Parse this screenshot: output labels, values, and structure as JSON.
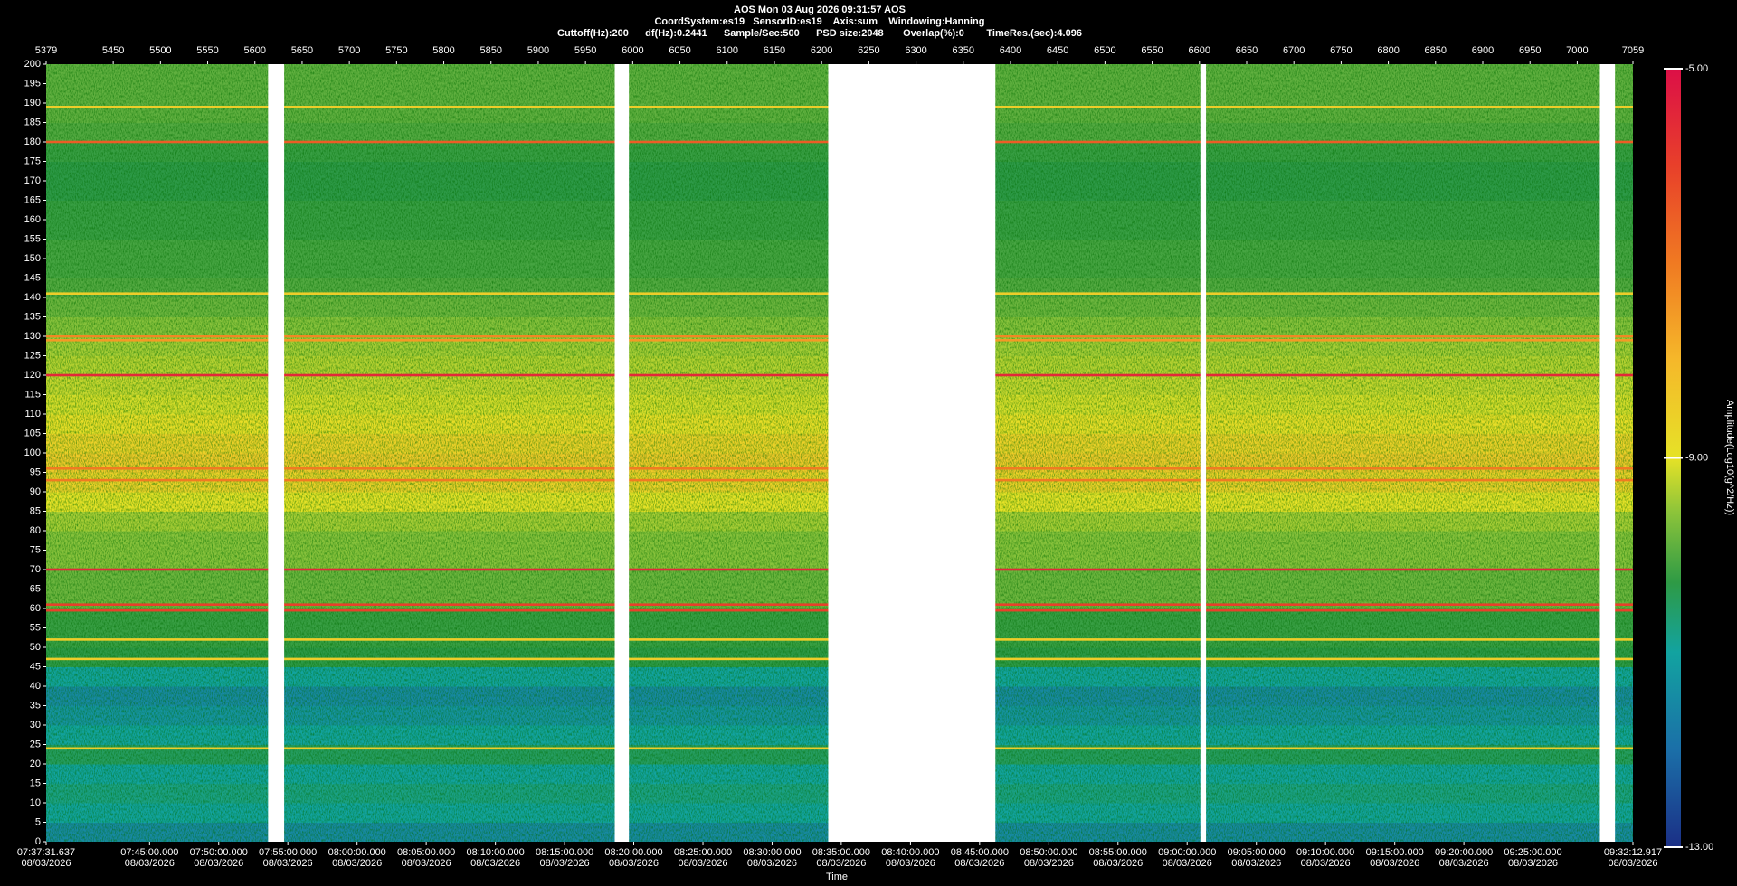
{
  "chart_data": {
    "type": "spectrogram",
    "title": "AOS  Mon 03 Aug 2026 09:31:57  AOS",
    "subtitle": "CoordSystem:es19   SensorID:es19    Axis:sum    Windowing:Hanning",
    "settings_line": "Cuttoff(Hz):200      df(Hz):0.2441      Sample/Sec:500      PSD size:2048       Overlap(%):0        TimeRes.(sec):4.096",
    "x_label": "Time",
    "colorbar_label": "Amplitude(Log10(g^2/Hz))",
    "xlim": [
      5379,
      7059
    ],
    "xticks_top": [
      5379,
      5450,
      5500,
      5550,
      5600,
      5650,
      5700,
      5750,
      5800,
      5850,
      5900,
      5950,
      6000,
      6050,
      6100,
      6150,
      6200,
      6250,
      6300,
      6350,
      6400,
      6450,
      6500,
      6550,
      6600,
      6650,
      6700,
      6750,
      6800,
      6850,
      6900,
      6950,
      7000,
      7059
    ],
    "xticks_bottom": [
      {
        "value": 5379,
        "label": "07:37:31.637\n08/03/2026"
      },
      {
        "value": 5488.5,
        "label": "07:45:00.000\n08/03/2026"
      },
      {
        "value": 5561.7,
        "label": "07:50:00.000\n08/03/2026"
      },
      {
        "value": 5634.9,
        "label": "07:55:00.000\n08/03/2026"
      },
      {
        "value": 5708.2,
        "label": "08:00:00.000\n08/03/2026"
      },
      {
        "value": 5781.4,
        "label": "08:05:00.000\n08/03/2026"
      },
      {
        "value": 5854.7,
        "label": "08:10:00.000\n08/03/2026"
      },
      {
        "value": 5927.9,
        "label": "08:15:00.000\n08/03/2026"
      },
      {
        "value": 6001.1,
        "label": "08:20:00.000\n08/03/2026"
      },
      {
        "value": 6074.4,
        "label": "08:25:00.000\n08/03/2026"
      },
      {
        "value": 6147.6,
        "label": "08:30:00.000\n08/03/2026"
      },
      {
        "value": 6220.8,
        "label": "08:35:00.000\n08/03/2026"
      },
      {
        "value": 6294.1,
        "label": "08:40:00.000\n08/03/2026"
      },
      {
        "value": 6367.3,
        "label": "08:45:00.000\n08/03/2026"
      },
      {
        "value": 6440.6,
        "label": "08:50:00.000\n08/03/2026"
      },
      {
        "value": 6513.8,
        "label": "08:55:00.000\n08/03/2026"
      },
      {
        "value": 6587.0,
        "label": "09:00:00.000\n08/03/2026"
      },
      {
        "value": 6660.3,
        "label": "09:05:00.000\n08/03/2026"
      },
      {
        "value": 6733.5,
        "label": "09:10:00.000\n08/03/2026"
      },
      {
        "value": 6806.8,
        "label": "09:15:00.000\n08/03/2026"
      },
      {
        "value": 6880.0,
        "label": "09:20:00.000\n08/03/2026"
      },
      {
        "value": 6953.2,
        "label": "09:25:00.000\n08/03/2026"
      },
      {
        "value": 7059,
        "label": "09:32:12.917\n08/03/2026"
      }
    ],
    "ylim": [
      0,
      200
    ],
    "yticks": [
      0,
      5,
      10,
      15,
      20,
      25,
      30,
      35,
      40,
      45,
      50,
      55,
      60,
      65,
      70,
      75,
      80,
      85,
      90,
      95,
      100,
      105,
      110,
      115,
      120,
      125,
      130,
      135,
      140,
      145,
      150,
      155,
      160,
      165,
      170,
      175,
      180,
      185,
      190,
      195,
      200
    ],
    "colorbar_lim": [
      -13,
      -5
    ],
    "colorbar_ticks": [
      {
        "value": -5,
        "label": "-5.00"
      },
      {
        "value": -9,
        "label": "-9.00"
      },
      {
        "value": -13,
        "label": "-13.00"
      }
    ],
    "band_edges": [
      0,
      5,
      10,
      15,
      20,
      25,
      30,
      35,
      40,
      45,
      50,
      55,
      60,
      65,
      70,
      75,
      80,
      85,
      90,
      95,
      100,
      105,
      110,
      115,
      120,
      125,
      130,
      135,
      140,
      145,
      150,
      155,
      160,
      165,
      170,
      175,
      180,
      185,
      190,
      195,
      200
    ],
    "band_values": [
      -11.5,
      -11,
      -10.8,
      -11,
      -10.5,
      -11,
      -11.3,
      -11.5,
      -11,
      -10.3,
      -10.2,
      -10.2,
      -9.8,
      -9.8,
      -9.6,
      -9.6,
      -9.4,
      -9,
      -8.6,
      -8.4,
      -8.6,
      -8.9,
      -9.1,
      -9.2,
      -9.3,
      -9.4,
      -9.6,
      -9.8,
      -10,
      -10.1,
      -10.1,
      -10.2,
      -10.2,
      -10.3,
      -10.3,
      -10.2,
      -10,
      -9.9,
      -9.9,
      -9.9
    ],
    "line_freqs": [
      189,
      180,
      141,
      130,
      129,
      120,
      96,
      93,
      70,
      61,
      59.5,
      52,
      47,
      24
    ],
    "line_values": [
      -8.5,
      -6.5,
      -8.5,
      -7.2,
      -7.5,
      -5.5,
      -7,
      -7,
      -5.5,
      -6,
      -6,
      -8.5,
      -8.5,
      -8.5
    ],
    "gaps": [
      [
        5614,
        5631
      ],
      [
        5981,
        5996
      ],
      [
        6207,
        6384
      ],
      [
        6601,
        6607
      ],
      [
        7024,
        7040
      ]
    ]
  }
}
